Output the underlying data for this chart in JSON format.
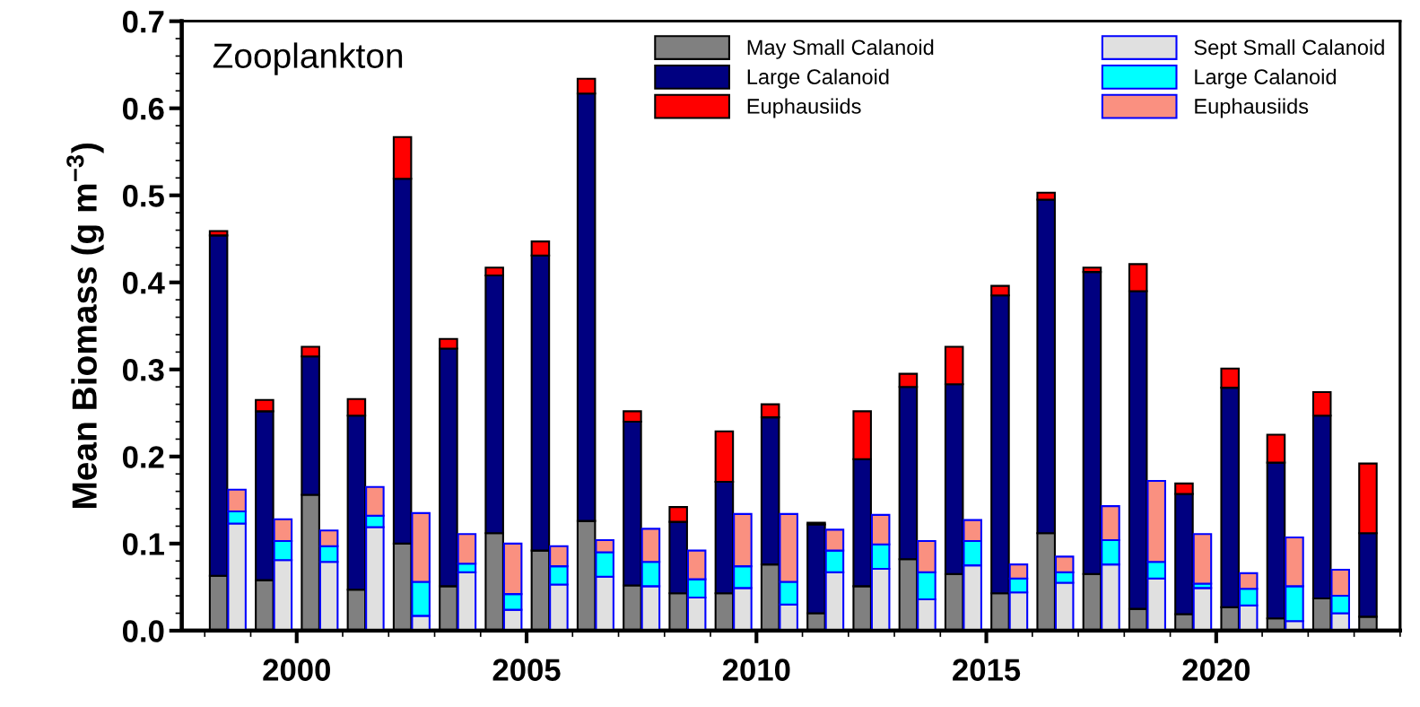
{
  "chart_data": [
    {
      "type": "bar",
      "stacked": true,
      "ylabel": "Mean Biomass (g m$^{−3}$)",
      "annotations": [
        "Zooplankton"
      ],
      "xlim": [
        1997.5,
        2024
      ],
      "xticks": [
        {
          "value": 1998,
          "label": null
        },
        {
          "value": 1999,
          "label": null
        },
        2000,
        {
          "value": 2001,
          "label": null
        },
        {
          "value": 2002,
          "label": null
        },
        {
          "value": 2003,
          "label": null
        },
        {
          "value": 2004,
          "label": null
        },
        2005,
        {
          "value": 2006,
          "label": null
        },
        {
          "value": 2007,
          "label": null
        },
        {
          "value": 2008,
          "label": null
        },
        {
          "value": 2009,
          "label": null
        },
        2010,
        {
          "value": 2011,
          "label": null
        },
        {
          "value": 2012,
          "label": null
        },
        {
          "value": 2013,
          "label": null
        },
        {
          "value": 2014,
          "label": null
        },
        2015,
        {
          "value": 2016,
          "label": null
        },
        {
          "value": 2017,
          "label": null
        },
        {
          "value": 2018,
          "label": null
        },
        {
          "value": 2019,
          "label": null
        },
        2020,
        {
          "value": 2021,
          "label": null
        },
        {
          "value": 2022,
          "label": null
        },
        {
          "value": 2023,
          "label": null
        },
        {
          "value": 2024,
          "label": null
        }
      ],
      "ylim": [
        0,
        0.7
      ],
      "yticks": [
        {
          "value": 0,
          "label": "0.0"
        },
        {
          "value": 0.02,
          "label": null
        },
        {
          "value": 0.04,
          "label": null
        },
        {
          "value": 0.06,
          "label": null
        },
        {
          "value": 0.08,
          "label": null
        },
        {
          "value": 0.1,
          "label": "0.1"
        },
        {
          "value": 0.12,
          "label": null
        },
        {
          "value": 0.14,
          "label": null
        },
        {
          "value": 0.16,
          "label": null
        },
        {
          "value": 0.18,
          "label": null
        },
        {
          "value": 0.2,
          "label": "0.2"
        },
        {
          "value": 0.22,
          "label": null
        },
        {
          "value": 0.24,
          "label": null
        },
        {
          "value": 0.26,
          "label": null
        },
        {
          "value": 0.28,
          "label": null
        },
        {
          "value": 0.3,
          "label": "0.3"
        },
        {
          "value": 0.32,
          "label": null
        },
        {
          "value": 0.34,
          "label": null
        },
        {
          "value": 0.36,
          "label": null
        },
        {
          "value": 0.38,
          "label": null
        },
        {
          "value": 0.4,
          "label": "0.4"
        },
        {
          "value": 0.42,
          "label": null
        },
        {
          "value": 0.44,
          "label": null
        },
        {
          "value": 0.46,
          "label": null
        },
        {
          "value": 0.48,
          "label": null
        },
        {
          "value": 0.5,
          "label": "0.5"
        },
        {
          "value": 0.52,
          "label": null
        },
        {
          "value": 0.54,
          "label": null
        },
        {
          "value": 0.56,
          "label": null
        },
        {
          "value": 0.58,
          "label": null
        },
        {
          "value": 0.6,
          "label": "0.6"
        },
        {
          "value": 0.62,
          "label": null
        },
        {
          "value": 0.64,
          "label": null
        },
        {
          "value": 0.66,
          "label": null
        },
        {
          "value": 0.68,
          "label": null
        },
        {
          "value": 0.7,
          "label": "0.7"
        }
      ],
      "legend": "top",
      "x": [
        1998.3,
        1999.3,
        2000.3,
        2001.3,
        2002.3,
        2003.3,
        2004.3,
        2005.3,
        2006.3,
        2007.3,
        2008.3,
        2009.3,
        2010.3,
        2011.3,
        2012.3,
        2013.3,
        2014.3,
        2015.3,
        2016.3,
        2017.3,
        2018.3,
        2019.3,
        2020.3,
        2021.3,
        2022.3,
        2023.3
      ],
      "series": [
        {
          "name": "May Small Calanoid",
          "color": "#808080",
          "values": [
            0.063,
            0.058,
            0.156,
            0.047,
            0.1,
            0.051,
            0.112,
            0.092,
            0.126,
            0.052,
            0.043,
            0.043,
            0.076,
            0.02,
            0.051,
            0.082,
            0.065,
            0.043,
            0.112,
            0.065,
            0.025,
            0.019,
            0.027,
            0.014,
            0.037,
            0.016
          ]
        },
        {
          "name": "Large Calanoid",
          "color": "#000080",
          "values": [
            0.391,
            0.194,
            0.159,
            0.2,
            0.419,
            0.273,
            0.296,
            0.339,
            0.491,
            0.188,
            0.082,
            0.128,
            0.169,
            0.102,
            0.146,
            0.198,
            0.218,
            0.342,
            0.383,
            0.347,
            0.365,
            0.138,
            0.252,
            0.179,
            0.21,
            0.096
          ]
        },
        {
          "name": "Euphausiids",
          "color": "#ff0000",
          "values": [
            0.005,
            0.013,
            0.011,
            0.019,
            0.048,
            0.011,
            0.009,
            0.016,
            0.017,
            0.012,
            0.017,
            0.058,
            0.015,
            0.002,
            0.055,
            0.015,
            0.043,
            0.011,
            0.008,
            0.005,
            0.031,
            0.012,
            0.022,
            0.032,
            0.027,
            0.08
          ]
        }
      ]
    },
    {
      "type": "bar",
      "stacked": true,
      "xlim": [
        1997.5,
        2024
      ],
      "ylim": [
        0,
        0.7
      ],
      "legend": "top right",
      "x": [
        1998.7,
        1999.7,
        2000.7,
        2001.7,
        2002.7,
        2003.7,
        2004.7,
        2005.7,
        2006.7,
        2007.7,
        2008.7,
        2009.7,
        2010.7,
        2011.7,
        2012.7,
        2013.7,
        2014.7,
        2015.7,
        2016.7,
        2017.7,
        2018.7,
        2019.7,
        2020.7,
        2021.7,
        2022.7
      ],
      "series": [
        {
          "name": "Sept Small Calanoid",
          "color": "#e0e0e0",
          "values": [
            0.123,
            0.081,
            0.079,
            0.119,
            0.017,
            0.067,
            0.024,
            0.053,
            0.062,
            0.051,
            0.038,
            0.049,
            0.03,
            0.067,
            0.071,
            0.036,
            0.075,
            0.044,
            0.055,
            0.076,
            0.06,
            0.049,
            0.029,
            0.011,
            0.02
          ]
        },
        {
          "name": "Large Calanoid",
          "color": "#00ffff",
          "values": [
            0.014,
            0.022,
            0.018,
            0.013,
            0.039,
            0.01,
            0.018,
            0.021,
            0.028,
            0.028,
            0.021,
            0.025,
            0.026,
            0.025,
            0.028,
            0.031,
            0.028,
            0.016,
            0.012,
            0.028,
            0.019,
            0.005,
            0.019,
            0.04,
            0.02
          ]
        },
        {
          "name": "Euphausiids",
          "color": "#fa9080",
          "values": [
            0.025,
            0.025,
            0.018,
            0.033,
            0.079,
            0.034,
            0.058,
            0.023,
            0.014,
            0.038,
            0.033,
            0.06,
            0.078,
            0.024,
            0.034,
            0.036,
            0.024,
            0.016,
            0.018,
            0.039,
            0.093,
            0.057,
            0.018,
            0.056,
            0.03
          ]
        }
      ]
    }
  ]
}
